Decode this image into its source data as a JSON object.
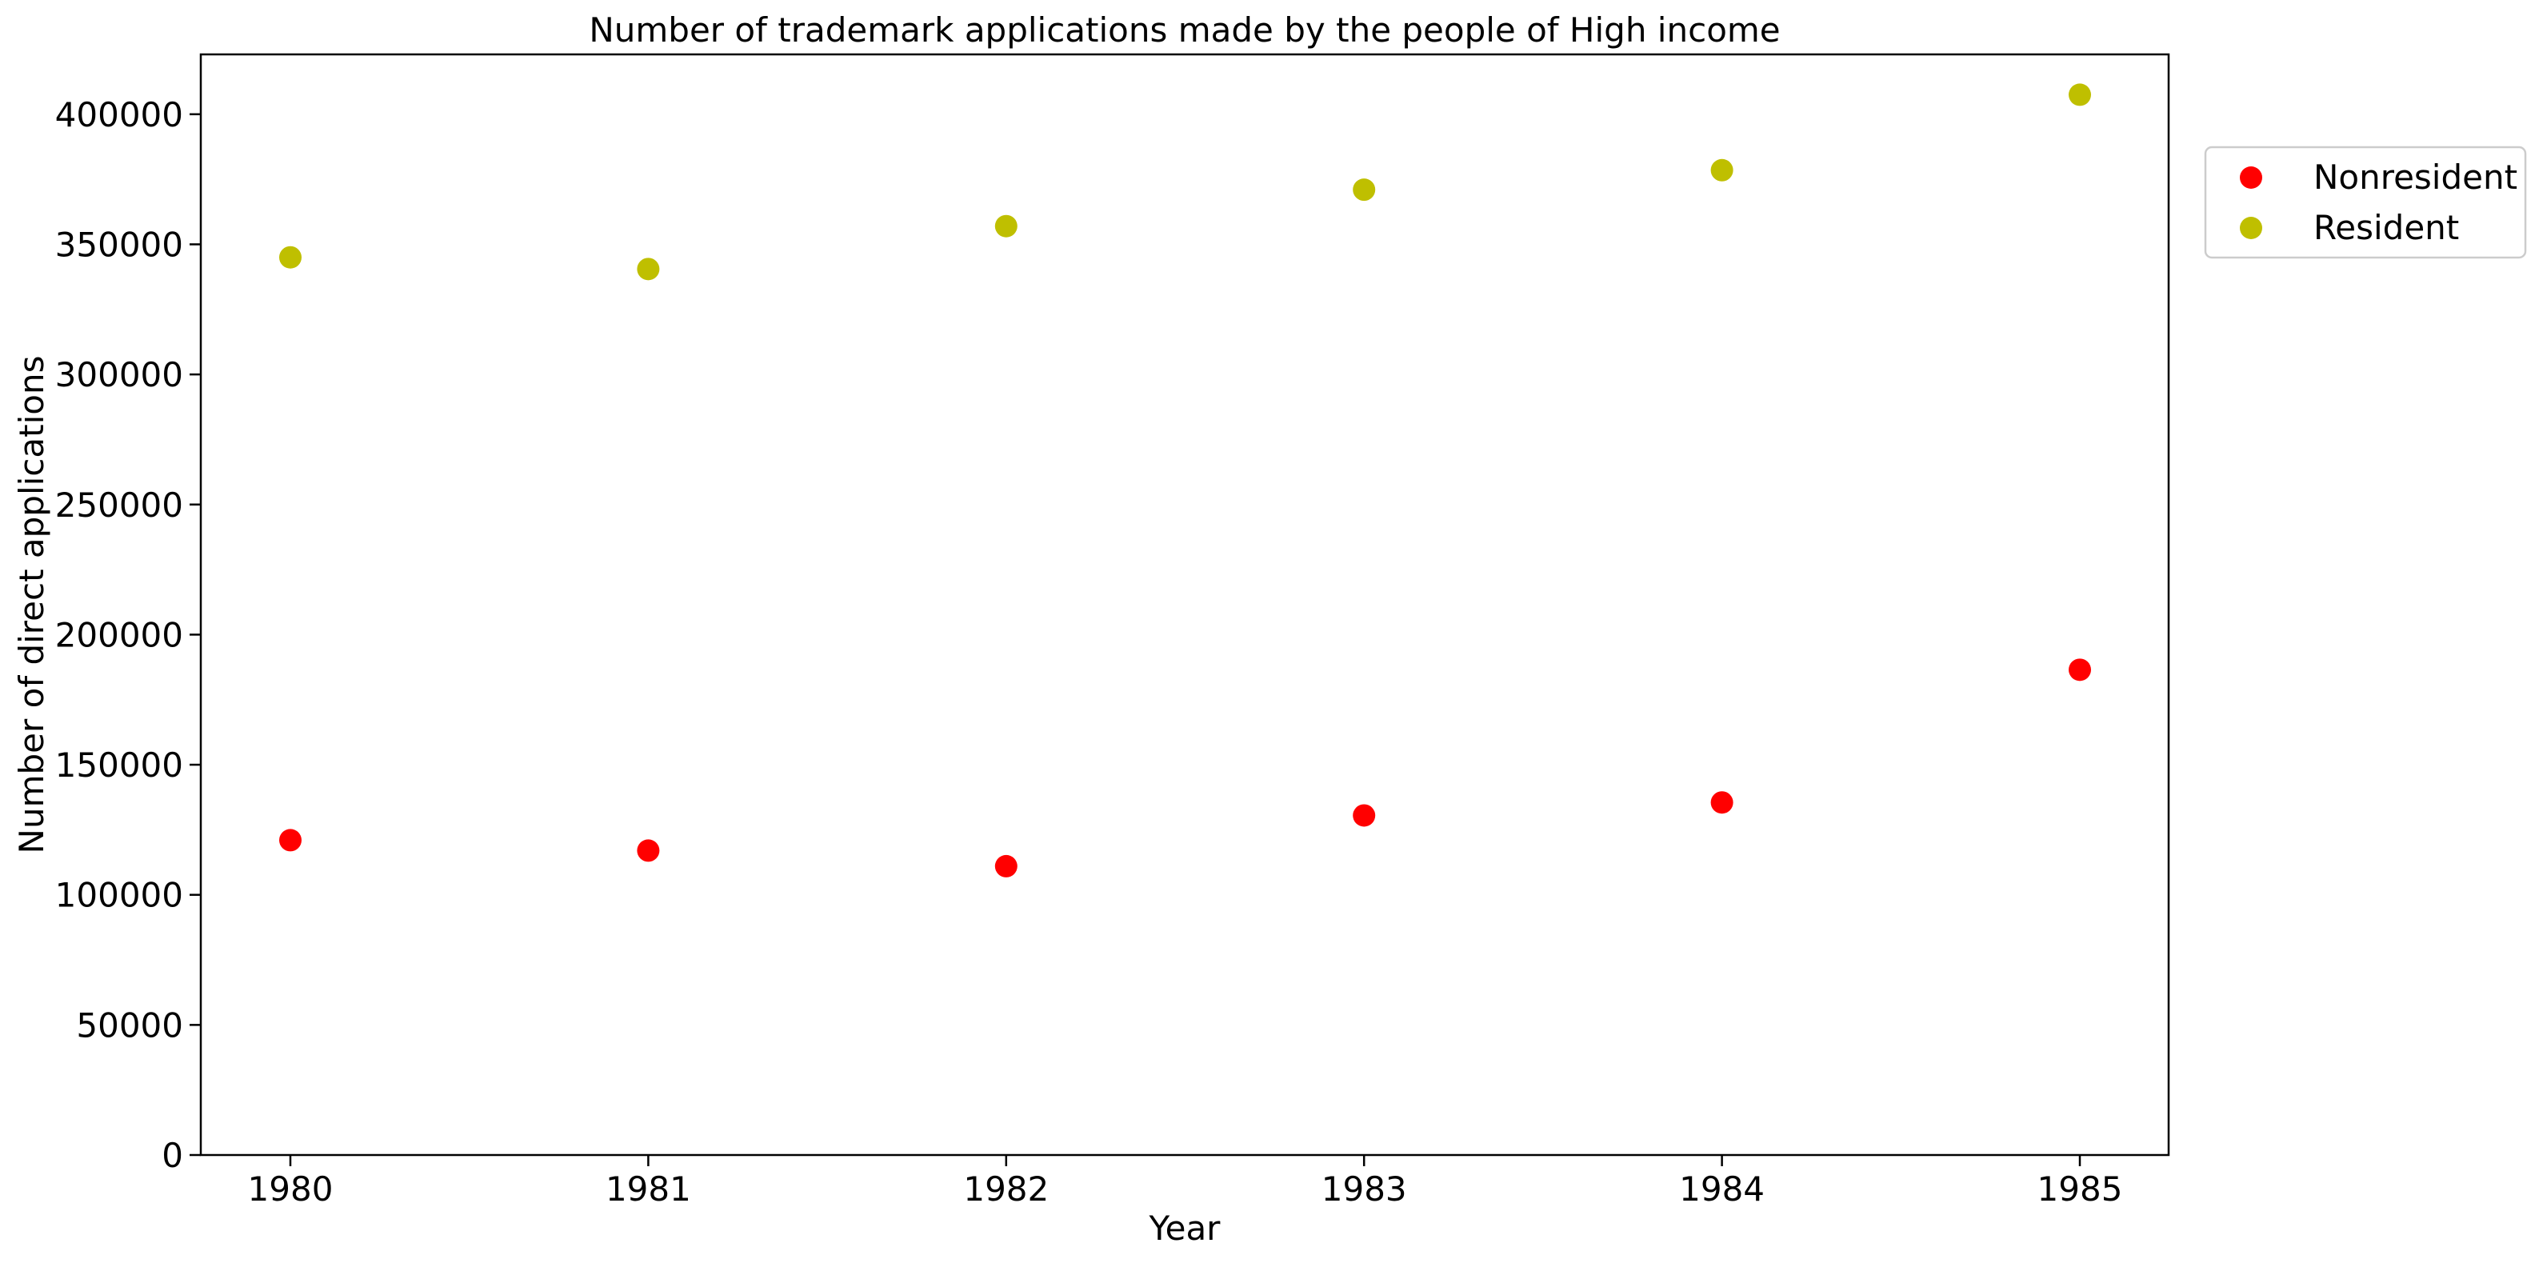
{
  "chart_data": {
    "type": "scatter",
    "title": "Number of trademark applications made by the people of High income",
    "xlabel": "Year",
    "ylabel": "Number of direct applications",
    "x": [
      1980,
      1981,
      1982,
      1983,
      1984,
      1985
    ],
    "x_tick_labels": [
      "1980",
      "1981",
      "1982",
      "1983",
      "1984",
      "1985"
    ],
    "ylim": [
      0,
      423000
    ],
    "y_ticks": [
      0,
      50000,
      100000,
      150000,
      200000,
      250000,
      300000,
      350000,
      400000
    ],
    "y_tick_labels": [
      "0",
      "50000",
      "100000",
      "150000",
      "200000",
      "250000",
      "300000",
      "350000",
      "400000"
    ],
    "grid": false,
    "legend_position": "outside-right-top",
    "series": [
      {
        "name": "Nonresident",
        "color": "#ff0000",
        "values": [
          121000,
          117000,
          111000,
          130500,
          135500,
          186500
        ]
      },
      {
        "name": "Resident",
        "color": "#bfbf00",
        "values": [
          345000,
          340500,
          357000,
          371000,
          378500,
          407500
        ]
      }
    ]
  }
}
